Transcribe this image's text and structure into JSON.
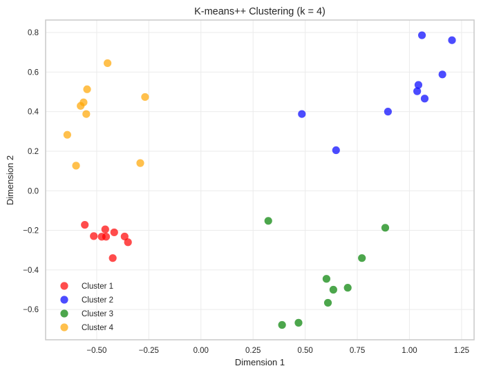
{
  "chart_data": {
    "type": "scatter",
    "title": "K-means++ Clustering (k = 4)",
    "xlabel": "Dimension 1",
    "ylabel": "Dimension 2",
    "xlim": [
      -0.745,
      1.31
    ],
    "ylim": [
      -0.753,
      0.863
    ],
    "xticks": [
      -0.5,
      -0.25,
      0.0,
      0.25,
      0.5,
      0.75,
      1.0,
      1.25
    ],
    "xtick_labels": [
      "−0.50",
      "−0.25",
      "0.00",
      "0.25",
      "0.50",
      "0.75",
      "1.00",
      "1.25"
    ],
    "yticks": [
      -0.6,
      -0.4,
      -0.2,
      0.0,
      0.2,
      0.4,
      0.6,
      0.8
    ],
    "ytick_labels": [
      "−0.6",
      "−0.4",
      "−0.2",
      "0.0",
      "0.2",
      "0.4",
      "0.6",
      "0.8"
    ],
    "grid": true,
    "legend_position": "lower-left",
    "marker_opacity": 0.7,
    "series": [
      {
        "name": "Cluster 1",
        "color": "#ff0000",
        "points": [
          [
            -0.557,
            -0.172
          ],
          [
            -0.514,
            -0.229
          ],
          [
            -0.476,
            -0.232
          ],
          [
            -0.459,
            -0.195
          ],
          [
            -0.455,
            -0.232
          ],
          [
            -0.416,
            -0.21
          ],
          [
            -0.366,
            -0.231
          ],
          [
            -0.35,
            -0.26
          ],
          [
            -0.423,
            -0.34
          ]
        ]
      },
      {
        "name": "Cluster 2",
        "color": "#0000ff",
        "points": [
          [
            1.06,
            0.786
          ],
          [
            1.204,
            0.761
          ],
          [
            1.158,
            0.588
          ],
          [
            1.043,
            0.535
          ],
          [
            1.037,
            0.503
          ],
          [
            1.073,
            0.466
          ],
          [
            0.897,
            0.4
          ],
          [
            0.484,
            0.388
          ],
          [
            0.648,
            0.205
          ]
        ]
      },
      {
        "name": "Cluster 3",
        "color": "#008000",
        "points": [
          [
            0.323,
            -0.152
          ],
          [
            0.884,
            -0.187
          ],
          [
            0.772,
            -0.34
          ],
          [
            0.602,
            -0.445
          ],
          [
            0.704,
            -0.49
          ],
          [
            0.635,
            -0.5
          ],
          [
            0.609,
            -0.566
          ],
          [
            0.468,
            -0.667
          ],
          [
            0.389,
            -0.678
          ]
        ]
      },
      {
        "name": "Cluster 4",
        "color": "#ffa500",
        "points": [
          [
            -0.448,
            0.645
          ],
          [
            -0.546,
            0.513
          ],
          [
            -0.563,
            0.447
          ],
          [
            -0.577,
            0.429
          ],
          [
            -0.55,
            0.388
          ],
          [
            -0.268,
            0.474
          ],
          [
            -0.641,
            0.283
          ],
          [
            -0.599,
            0.127
          ],
          [
            -0.291,
            0.14
          ]
        ]
      }
    ]
  }
}
